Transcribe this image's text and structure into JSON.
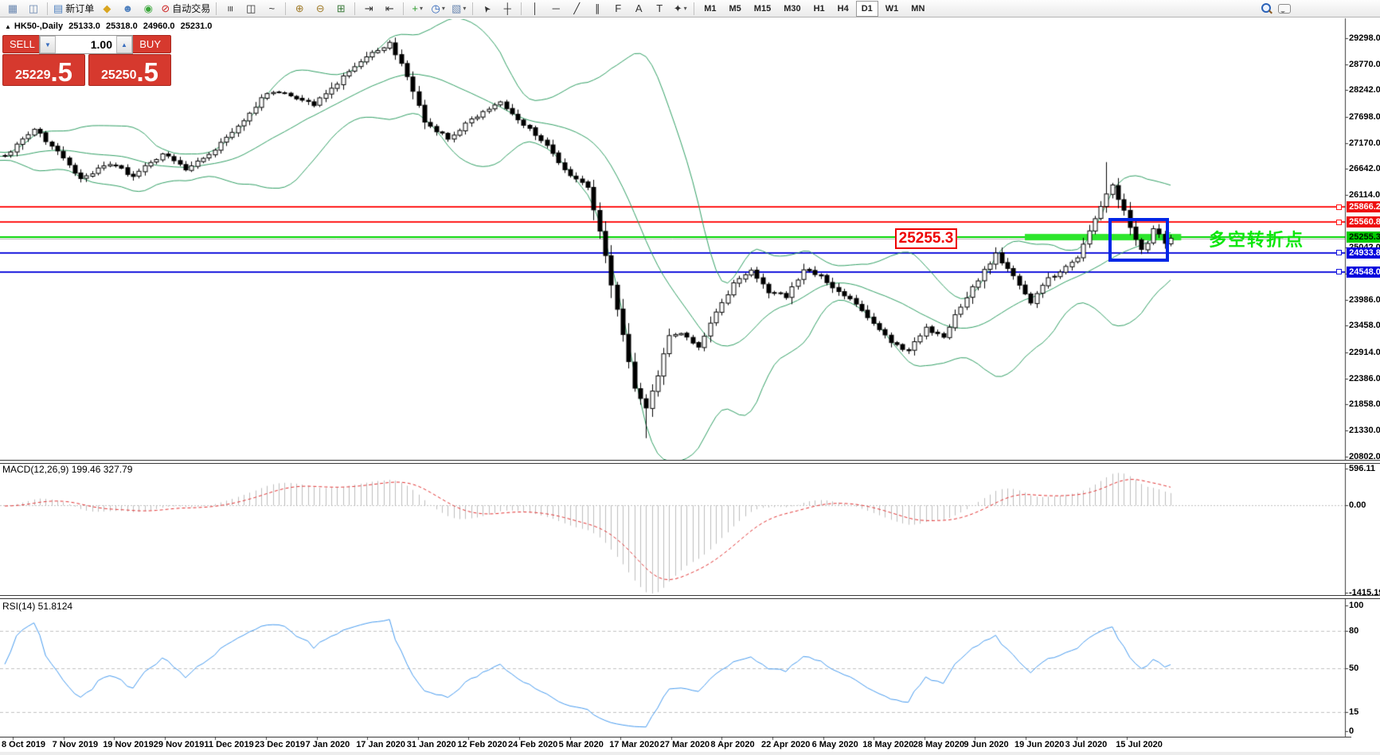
{
  "toolbar": {
    "groups": [
      {
        "name": "windows",
        "items": [
          {
            "name": "charts-icon",
            "glyph": "▦",
            "color": "#6a87b0"
          },
          {
            "name": "profiles-icon",
            "glyph": "◫",
            "color": "#6a87b0"
          }
        ]
      },
      {
        "name": "trade",
        "items": [
          {
            "name": "new-order-button",
            "glyph": "▤",
            "color": "#4d7fbe",
            "label": "新订单"
          },
          {
            "name": "market-icon",
            "glyph": "◆",
            "color": "#d9a520"
          },
          {
            "name": "community-icon",
            "glyph": "☻",
            "color": "#4d7fbe"
          },
          {
            "name": "signals-icon",
            "glyph": "◉",
            "color": "#3aa73a"
          },
          {
            "name": "autotrading-button",
            "glyph": "⊘",
            "color": "#cc2222",
            "label": "自动交易"
          }
        ]
      },
      {
        "name": "chart-type",
        "items": [
          {
            "name": "bar-chart-icon",
            "glyph": "≡",
            "color": "#333",
            "rotate": 90
          },
          {
            "name": "candlestick-chart-icon",
            "glyph": "◫",
            "color": "#333"
          },
          {
            "name": "line-chart-icon",
            "glyph": "~",
            "color": "#333"
          }
        ]
      },
      {
        "name": "zoom",
        "items": [
          {
            "name": "zoom-in-icon",
            "glyph": "⊕",
            "color": "#a07a28"
          },
          {
            "name": "zoom-out-icon",
            "glyph": "⊖",
            "color": "#a07a28"
          },
          {
            "name": "tile-windows-icon",
            "glyph": "⊞",
            "color": "#3a7a3a"
          }
        ]
      },
      {
        "name": "scroll",
        "items": [
          {
            "name": "auto-scroll-icon",
            "glyph": "⇥",
            "color": "#333"
          },
          {
            "name": "chart-shift-icon",
            "glyph": "⇤",
            "color": "#333"
          }
        ]
      },
      {
        "name": "objects",
        "items": [
          {
            "name": "indicators-button",
            "glyph": "+",
            "color": "#2a9a2a",
            "caret": true
          },
          {
            "name": "periods-button",
            "glyph": "◷",
            "color": "#2a62b8",
            "caret": true
          },
          {
            "name": "templates-button",
            "glyph": "▧",
            "color": "#6a87b0",
            "caret": true
          }
        ]
      },
      {
        "name": "pointer",
        "items": [
          {
            "name": "cursor-icon",
            "glyph": "➤",
            "color": "#333",
            "cursor": true
          },
          {
            "name": "crosshair-icon",
            "glyph": "┼",
            "color": "#333"
          }
        ]
      },
      {
        "name": "drawing",
        "items": [
          {
            "name": "vertical-line-icon",
            "glyph": "│",
            "color": "#333"
          },
          {
            "name": "horizontal-line-icon",
            "glyph": "─",
            "color": "#333"
          },
          {
            "name": "trendline-icon",
            "glyph": "╱",
            "color": "#333"
          },
          {
            "name": "channel-icon",
            "glyph": "∥",
            "color": "#333"
          },
          {
            "name": "fibonacci-icon",
            "glyph": "F",
            "color": "#333"
          },
          {
            "name": "text-icon",
            "glyph": "A",
            "color": "#333"
          },
          {
            "name": "label-icon",
            "glyph": "T",
            "color": "#333"
          },
          {
            "name": "arrows-icon",
            "glyph": "✦",
            "color": "#333",
            "caret": true
          }
        ]
      }
    ],
    "timeframes": {
      "label_names": [
        "M1",
        "M5",
        "M15",
        "M30",
        "H1",
        "H4",
        "D1",
        "W1",
        "MN"
      ],
      "active": "D1"
    }
  },
  "chart": {
    "collapse_glyph": "▲",
    "symbol": "HK50-,Daily",
    "open": "25133.0",
    "high": "25318.0",
    "low": "24960.0",
    "close": "25231.0"
  },
  "trade_panel": {
    "sell_label": "SELL",
    "buy_label": "BUY",
    "volume": "1.00",
    "volume_down_glyph": "▼",
    "volume_up_glyph": "▲",
    "sell_price_main": "25229",
    "sell_price_pips": ".5",
    "buy_price_main": "25250",
    "buy_price_pips": ".5"
  },
  "axis": {
    "main_prices": [
      "29298.0",
      "28770.0",
      "28242.0",
      "27698.0",
      "27170.0",
      "26642.0",
      "26114.0",
      "25042.0",
      "24514.0",
      "23986.0",
      "23458.0",
      "22914.0",
      "22386.0",
      "21858.0",
      "21330.0",
      "20802.0"
    ]
  },
  "tags": [
    {
      "text": "25866.2",
      "price": 25866.2,
      "type": "red"
    },
    {
      "text": "25560.8",
      "price": 25560.8,
      "type": "red"
    },
    {
      "text": "25255.3",
      "price": 25255.3,
      "type": "green"
    },
    {
      "text": "24933.8",
      "price": 24933.8,
      "type": "blue"
    },
    {
      "text": "24548.0",
      "price": 24548.0,
      "type": "blue"
    }
  ],
  "macd": {
    "label": "MACD(12,26,9) 199.46 327.79",
    "axis": [
      {
        "text": "596.11",
        "v": 596.11
      },
      {
        "text": "0.00",
        "v": 0
      },
      {
        "text": "-1415.19",
        "v": -1415.19
      }
    ]
  },
  "rsi": {
    "label": "RSI(14) 51.8124",
    "axis": [
      {
        "text": "100",
        "v": 100
      },
      {
        "text": "80",
        "v": 80
      },
      {
        "text": "50",
        "v": 50
      },
      {
        "text": "15",
        "v": 15
      },
      {
        "text": "0",
        "v": 0
      }
    ],
    "dashed_levels": [
      80,
      50,
      15
    ]
  },
  "dates": [
    "8 Oct 2019",
    "7 Nov 2019",
    "19 Nov 2019",
    "29 Nov 2019",
    "11 Dec 2019",
    "23 Dec 2019",
    "7 Jan 2020",
    "17 Jan 2020",
    "31 Jan 2020",
    "12 Feb 2020",
    "24 Feb 2020",
    "5 Mar 2020",
    "17 Mar 2020",
    "27 Mar 2020",
    "8 Apr 2020",
    "22 Apr 2020",
    "6 May 2020",
    "18 May 2020",
    "28 May 2020",
    "9 Jun 2020",
    "19 Jun 2020",
    "3 Jul 2020",
    "15 Jul 2020"
  ],
  "annotations": {
    "callout_text": "25255.3",
    "cn_text": "多空转折点"
  },
  "chart_data": {
    "type": "candlestick",
    "symbol": "HK50-",
    "timeframe": "Daily",
    "ohlc_header": {
      "open": 25133.0,
      "high": 25318.0,
      "low": 24960.0,
      "close": 25231.0
    },
    "bars_total": 201,
    "price_anchors": [
      [
        0,
        26900
      ],
      [
        5,
        27450
      ],
      [
        9,
        27000
      ],
      [
        13,
        26450
      ],
      [
        18,
        26750
      ],
      [
        22,
        26500
      ],
      [
        27,
        26950
      ],
      [
        31,
        26650
      ],
      [
        36,
        27050
      ],
      [
        40,
        27500
      ],
      [
        45,
        28200
      ],
      [
        49,
        28150
      ],
      [
        53,
        27950
      ],
      [
        58,
        28500
      ],
      [
        62,
        28950
      ],
      [
        66,
        29200
      ],
      [
        69,
        28550
      ],
      [
        72,
        27600
      ],
      [
        76,
        27250
      ],
      [
        80,
        27650
      ],
      [
        85,
        28000
      ],
      [
        89,
        27550
      ],
      [
        93,
        27100
      ],
      [
        97,
        26500
      ],
      [
        100,
        26250
      ],
      [
        102,
        25400
      ],
      [
        104,
        24300
      ],
      [
        106,
        23300
      ],
      [
        108,
        22200
      ],
      [
        110,
        21750
      ],
      [
        112,
        22450
      ],
      [
        114,
        23250
      ],
      [
        116,
        23300
      ],
      [
        119,
        23050
      ],
      [
        122,
        23700
      ],
      [
        125,
        24300
      ],
      [
        128,
        24550
      ],
      [
        131,
        24150
      ],
      [
        134,
        24050
      ],
      [
        137,
        24600
      ],
      [
        140,
        24450
      ],
      [
        143,
        24150
      ],
      [
        146,
        23900
      ],
      [
        149,
        23500
      ],
      [
        152,
        23100
      ],
      [
        155,
        22950
      ],
      [
        158,
        23400
      ],
      [
        161,
        23250
      ],
      [
        164,
        23850
      ],
      [
        167,
        24400
      ],
      [
        170,
        24900
      ],
      [
        173,
        24450
      ],
      [
        176,
        23950
      ],
      [
        179,
        24400
      ],
      [
        182,
        24650
      ],
      [
        184,
        24850
      ],
      [
        186,
        25350
      ],
      [
        187,
        25600
      ],
      [
        189,
        26150
      ],
      [
        190,
        26350
      ],
      [
        191,
        26050
      ],
      [
        192,
        25800
      ],
      [
        193,
        25450
      ],
      [
        194,
        25200
      ],
      [
        195,
        24980
      ],
      [
        196,
        25150
      ],
      [
        197,
        25420
      ],
      [
        198,
        25320
      ],
      [
        199,
        25120
      ],
      [
        200,
        25231
      ]
    ],
    "extremes": [
      {
        "bar": 66,
        "high": 29260
      },
      {
        "bar": 110,
        "low": 21170
      },
      {
        "bar": 189,
        "high": 26780
      }
    ],
    "indicators": [
      {
        "name": "Bollinger Bands",
        "period": 20,
        "deviation": 2,
        "color": "#2f9e63"
      },
      {
        "name": "MACD",
        "fast": 12,
        "slow": 26,
        "signal": 9,
        "values": [
          199.46,
          327.79
        ]
      },
      {
        "name": "RSI",
        "period": 14,
        "value": 51.8124
      }
    ],
    "levels": [
      {
        "price": 25866.2,
        "color": "#ff1a1a",
        "width": 2,
        "marker": true
      },
      {
        "price": 25560.8,
        "color": "#ff1a1a",
        "width": 2,
        "marker": true
      },
      {
        "price": 25255.3,
        "color": "#00d400",
        "width": 2,
        "marker": false
      },
      {
        "price": 25231.0,
        "color": "#b4b4b4",
        "width": 1,
        "marker": false
      },
      {
        "price": 24933.8,
        "color": "#1717dd",
        "width": 2,
        "marker": true
      },
      {
        "price": 24548.0,
        "color": "#1717dd",
        "width": 2,
        "marker": true
      }
    ],
    "thick_line": {
      "from_bar": 175,
      "to_bar": 201,
      "price": 25255.3,
      "color": "#2ce62c"
    },
    "rectangle": {
      "from_bar": 190,
      "to_bar": 199,
      "price_top": 25650,
      "price_bottom": 24760
    },
    "y_axis_range": [
      20802,
      29298
    ],
    "macd_axis_range": {
      "max": 596.11,
      "min": -1415.19
    },
    "rsi_axis_range": [
      0,
      100
    ]
  }
}
